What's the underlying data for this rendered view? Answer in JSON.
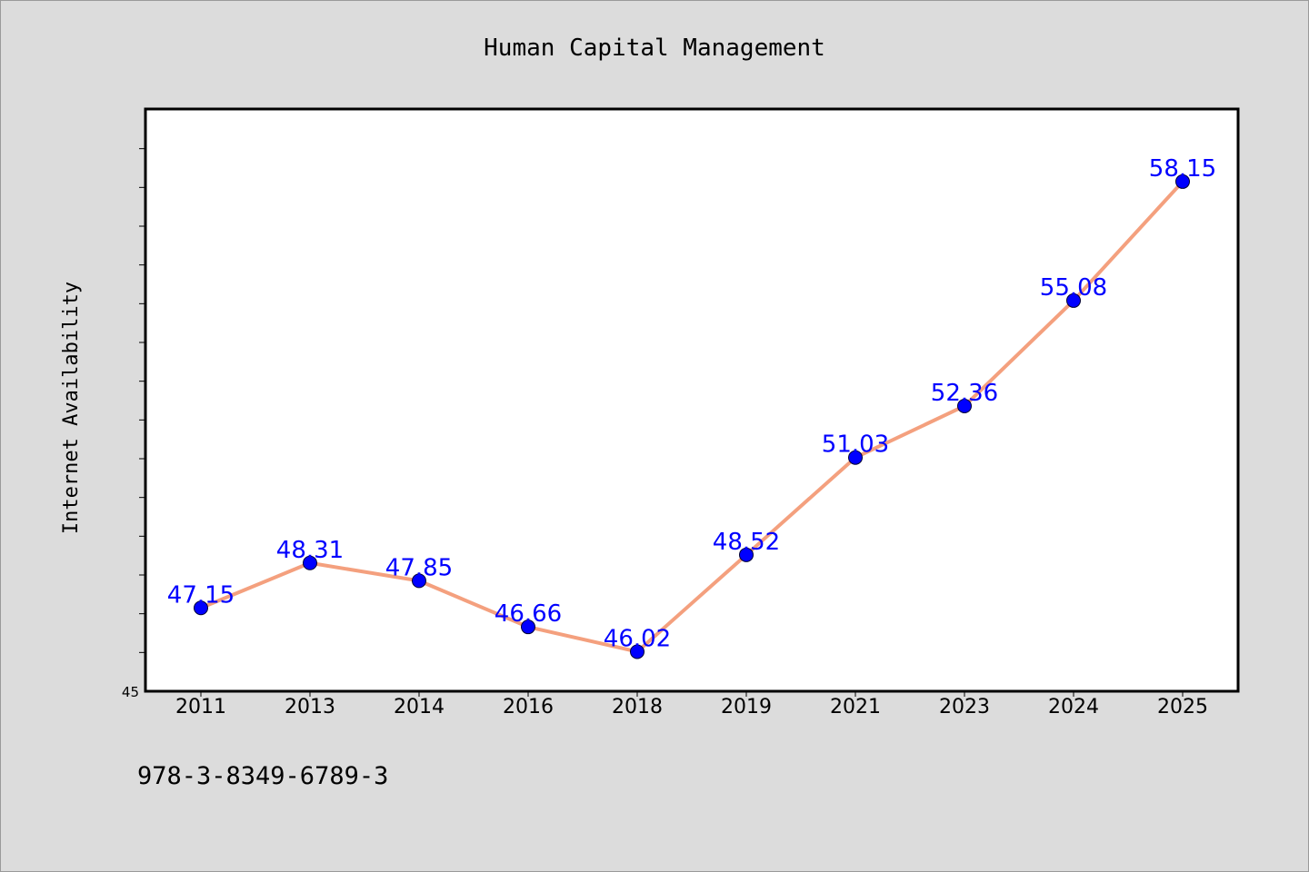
{
  "chart_data": {
    "type": "line",
    "title": "Human Capital Management",
    "xlabel": "",
    "ylabel": "Internet Availability",
    "categories": [
      "2011",
      "2013",
      "2014",
      "2016",
      "2018",
      "2019",
      "2021",
      "2023",
      "2024",
      "2025"
    ],
    "series": [
      {
        "values": [
          47.15,
          48.31,
          47.85,
          46.66,
          46.02,
          48.52,
          51.03,
          52.36,
          55.08,
          58.15
        ],
        "labels": [
          "47.15",
          "48.31",
          "47.85",
          "46.66",
          "46.02",
          "48.52",
          "51.03",
          "52.36",
          "55.08",
          "58.15"
        ]
      }
    ],
    "ylim": [
      45,
      60
    ],
    "yticks_labeled": [
      "45"
    ],
    "grid": false,
    "legend": "none",
    "colors": {
      "line": "#f4a07e",
      "marker": "#0000ff",
      "data_label": "#0000ff",
      "background": "#dcdcdc",
      "plot_background": "#ffffff"
    }
  },
  "footnote": "978-3-8349-6789-3"
}
